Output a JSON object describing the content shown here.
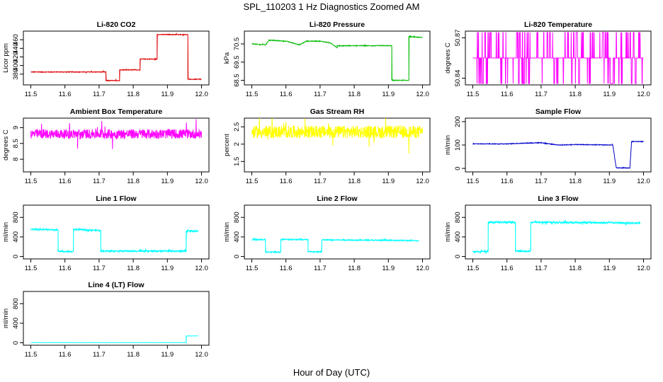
{
  "figure": {
    "title": "SPL_110203  1 Hz Diagnostics Zoomed AM",
    "xlabel": "Hour of Day (UTC)"
  },
  "chart_data": [
    {
      "type": "line",
      "title": "Li-820 CO2",
      "ylabel": "Licor ppm",
      "xlim": [
        11.5,
        12.0
      ],
      "ylim": [
        355,
        480
      ],
      "xticks": [
        "11.5",
        "11.6",
        "11.7",
        "11.8",
        "11.9",
        "12.0"
      ],
      "yticks": [
        380,
        400,
        420,
        440,
        460
      ],
      "color": "#dd0000",
      "noise": 0.8,
      "points": [
        [
          11.5,
          385
        ],
        [
          11.72,
          385
        ],
        [
          11.72,
          365
        ],
        [
          11.76,
          365
        ],
        [
          11.76,
          390
        ],
        [
          11.82,
          390
        ],
        [
          11.82,
          415
        ],
        [
          11.87,
          415
        ],
        [
          11.87,
          472
        ],
        [
          11.96,
          472
        ],
        [
          11.96,
          368
        ],
        [
          12.0,
          368
        ]
      ]
    },
    {
      "type": "line",
      "title": "Li-820 Pressure",
      "ylabel": "kPa",
      "xlim": [
        11.5,
        12.0
      ],
      "ylim": [
        68.25,
        71.2
      ],
      "xticks": [
        "11.5",
        "11.6",
        "11.7",
        "11.8",
        "11.9",
        "12.0"
      ],
      "yticks": [
        68.5,
        69.5,
        70.5
      ],
      "color": "#00bb00",
      "noise": 0.02,
      "points": [
        [
          11.5,
          70.5
        ],
        [
          11.54,
          70.45
        ],
        [
          11.55,
          70.7
        ],
        [
          11.6,
          70.65
        ],
        [
          11.64,
          70.45
        ],
        [
          11.66,
          70.65
        ],
        [
          11.7,
          70.65
        ],
        [
          11.73,
          70.55
        ],
        [
          11.75,
          70.3
        ],
        [
          11.75,
          70.4
        ],
        [
          11.8,
          70.4
        ],
        [
          11.91,
          70.4
        ],
        [
          11.91,
          68.5
        ],
        [
          11.96,
          68.5
        ],
        [
          11.96,
          70.9
        ],
        [
          12.0,
          70.85
        ]
      ]
    },
    {
      "type": "line",
      "title": "Li-820 Temperature",
      "ylabel": "degrees C",
      "xlim": [
        11.5,
        12.0
      ],
      "ylim": [
        50.835,
        50.875
      ],
      "xticks": [
        "11.5",
        "11.6",
        "11.7",
        "11.8",
        "11.9",
        "12.0"
      ],
      "yticks": [
        50.84,
        50.87
      ],
      "color": "#ff00ff",
      "quantized": [
        50.836,
        50.855,
        50.874
      ],
      "points": [
        [
          11.5,
          50.855
        ],
        [
          12.0,
          50.855
        ]
      ]
    },
    {
      "type": "line",
      "title": "Ambient Box Temperature",
      "ylabel": "degrees C",
      "xlim": [
        11.5,
        12.0
      ],
      "ylim": [
        7.6,
        9.3
      ],
      "xticks": [
        "11.5",
        "11.6",
        "11.7",
        "11.8",
        "11.9",
        "12.0"
      ],
      "yticks": [
        8.0,
        8.5,
        9.0
      ],
      "color": "#ff00ff",
      "noise": 0.15,
      "points": [
        [
          11.5,
          8.8
        ],
        [
          12.0,
          8.8
        ]
      ]
    },
    {
      "type": "line",
      "title": "Gas Stream RH",
      "ylabel": "percent",
      "xlim": [
        11.5,
        12.0
      ],
      "ylim": [
        1.2,
        2.75
      ],
      "xticks": [
        "11.5",
        "11.6",
        "11.7",
        "11.8",
        "11.9",
        "12.0"
      ],
      "yticks": [
        1.5,
        2.0,
        2.5
      ],
      "color": "#ffff00",
      "noise": 0.18,
      "points": [
        [
          11.5,
          2.35
        ],
        [
          12.0,
          2.35
        ]
      ]
    },
    {
      "type": "line",
      "title": "Sample Flow",
      "ylabel": "ml/min",
      "xlim": [
        11.5,
        12.0
      ],
      "ylim": [
        -15,
        215
      ],
      "xticks": [
        "11.5",
        "11.6",
        "11.7",
        "11.8",
        "11.9",
        "12.0"
      ],
      "yticks": [
        0,
        100,
        200
      ],
      "color": "#0000cc",
      "noise": 1.5,
      "points": [
        [
          11.5,
          105
        ],
        [
          11.6,
          105
        ],
        [
          11.65,
          108
        ],
        [
          11.7,
          110
        ],
        [
          11.75,
          100
        ],
        [
          11.8,
          102
        ],
        [
          11.91,
          100
        ],
        [
          11.92,
          2
        ],
        [
          11.96,
          2
        ],
        [
          11.965,
          115
        ],
        [
          12.0,
          115
        ]
      ]
    },
    {
      "type": "line",
      "title": "Line 1 Flow",
      "ylabel": "ml/min",
      "xlim": [
        11.5,
        12.0
      ],
      "ylim": [
        -50,
        1050
      ],
      "xticks": [
        "11.5",
        "11.6",
        "11.7",
        "11.8",
        "11.9",
        "12.0"
      ],
      "yticks": [
        0,
        400,
        800
      ],
      "color": "#00ffff",
      "noise": 15,
      "points": [
        [
          11.5,
          560
        ],
        [
          11.58,
          540
        ],
        [
          11.58,
          100
        ],
        [
          11.625,
          100
        ],
        [
          11.625,
          555
        ],
        [
          11.705,
          530
        ],
        [
          11.705,
          110
        ],
        [
          11.955,
          110
        ],
        [
          11.955,
          520
        ],
        [
          11.99,
          520
        ]
      ]
    },
    {
      "type": "line",
      "title": "Line 2 Flow",
      "ylabel": "ml/min",
      "xlim": [
        11.5,
        12.0
      ],
      "ylim": [
        -50,
        1050
      ],
      "xticks": [
        "11.5",
        "11.6",
        "11.7",
        "11.8",
        "11.9",
        "12.0"
      ],
      "yticks": [
        0,
        400,
        800
      ],
      "color": "#00ffff",
      "noise": 12,
      "points": [
        [
          11.5,
          345
        ],
        [
          11.54,
          345
        ],
        [
          11.54,
          90
        ],
        [
          11.585,
          90
        ],
        [
          11.585,
          350
        ],
        [
          11.665,
          345
        ],
        [
          11.665,
          95
        ],
        [
          11.705,
          95
        ],
        [
          11.705,
          340
        ],
        [
          11.92,
          330
        ],
        [
          11.99,
          320
        ]
      ]
    },
    {
      "type": "line",
      "title": "Line 3 Flow",
      "ylabel": "ml/min",
      "xlim": [
        11.5,
        12.0
      ],
      "ylim": [
        -50,
        1050
      ],
      "xticks": [
        "11.5",
        "11.6",
        "11.7",
        "11.8",
        "11.9",
        "12.0"
      ],
      "yticks": [
        0,
        400,
        800
      ],
      "color": "#00ffff",
      "noise": 18,
      "points": [
        [
          11.5,
          100
        ],
        [
          11.545,
          100
        ],
        [
          11.545,
          700
        ],
        [
          11.625,
          700
        ],
        [
          11.625,
          110
        ],
        [
          11.67,
          110
        ],
        [
          11.67,
          700
        ],
        [
          11.92,
          690
        ],
        [
          11.99,
          680
        ]
      ]
    },
    {
      "type": "line",
      "title": "Line 4 (LT) Flow",
      "ylabel": "ml/min",
      "xlim": [
        11.5,
        12.0
      ],
      "ylim": [
        -50,
        1050
      ],
      "xticks": [
        "11.5",
        "11.6",
        "11.7",
        "11.8",
        "11.9",
        "12.0"
      ],
      "yticks": [
        0,
        400,
        800
      ],
      "color": "#00ffff",
      "noise": 1,
      "points": [
        [
          11.5,
          5
        ],
        [
          11.955,
          5
        ],
        [
          11.955,
          140
        ],
        [
          11.99,
          140
        ]
      ]
    }
  ]
}
